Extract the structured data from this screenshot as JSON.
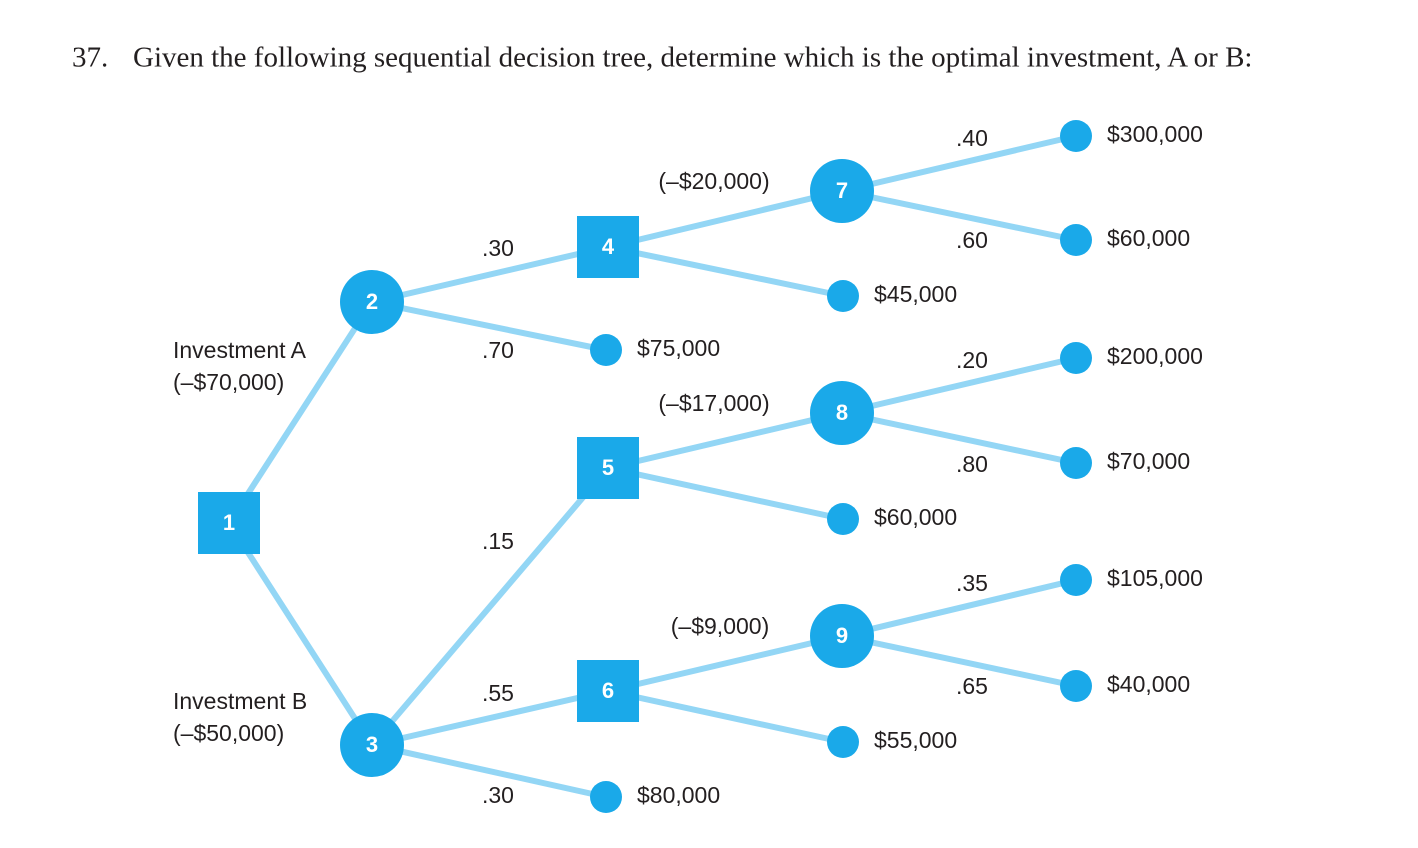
{
  "question": {
    "number": "37.",
    "text": "Given the following sequential decision tree, determine which is the optimal investment, A or B:"
  },
  "nodes": [
    "1",
    "2",
    "3",
    "4",
    "5",
    "6",
    "7",
    "8",
    "9"
  ],
  "investments": [
    {
      "name": "Investment A",
      "cost": "(–$70,000)"
    },
    {
      "name": "Investment B",
      "cost": "(–$50,000)"
    }
  ],
  "stage_costs": [
    "(–$20,000)",
    "(–$17,000)",
    "(–$9,000)"
  ],
  "probabilities": [
    ".30",
    ".70",
    ".15",
    ".55",
    ".30",
    ".40",
    ".60",
    ".20",
    ".80",
    ".35",
    ".65"
  ],
  "payoffs": [
    "$300,000",
    "$60,000",
    "$45,000",
    "$75,000",
    "$200,000",
    "$70,000",
    "$60,000",
    "$105,000",
    "$40,000",
    "$55,000",
    "$80,000"
  ]
}
